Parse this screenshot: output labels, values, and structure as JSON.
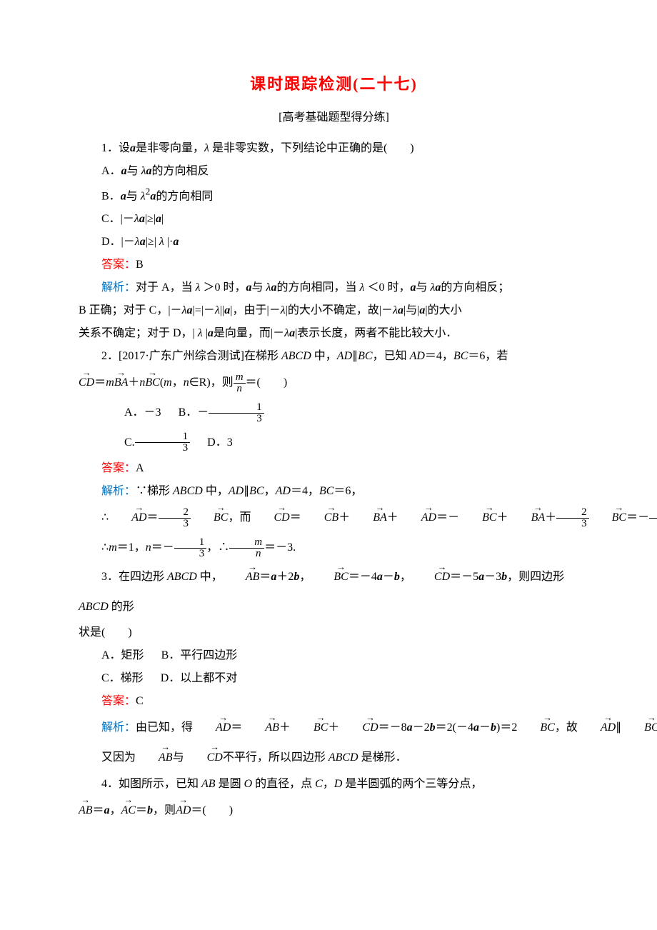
{
  "title": "课时跟踪检测(二十七)",
  "subtitle": "[高考基础题型得分练]",
  "q1": {
    "stem_prefix": "1．设",
    "stem_mid1": "是非零向量，",
    "stem_mid2": " 是非零实数，下列结论中正确的是(　　)",
    "optA_pre": "A．",
    "optA_mid": "与 ",
    "optA_post": "的方向相反",
    "optB_pre": "B．",
    "optB_mid": "与 ",
    "optB_post": "的方向相同",
    "optC": "C．|－",
    "optC_mid": "|≥|",
    "optC_post": "|",
    "optD": "D．|－",
    "optD_mid": "|≥| ",
    "optD_post": " |·",
    "answer_label": "答案：",
    "answer": "B",
    "analysis_label": "解析：",
    "analysis1_a": "对于 A，当 ",
    "analysis1_b": " ＞0 时，",
    "analysis1_c": "与 ",
    "analysis1_d": "的方向相同，当 ",
    "analysis1_e": " ＜0 时，",
    "analysis1_f": "与 ",
    "analysis1_g": "的方向相反；",
    "analysis2_a": "B 正确；对于 C，|－",
    "analysis2_b": "|=|－",
    "analysis2_c": "||",
    "analysis2_d": "|，由于|－",
    "analysis2_e": "|的大小不确定，故|－",
    "analysis2_f": "|与|",
    "analysis2_g": "|的大小",
    "analysis3_a": "关系不确定；对于 D，| ",
    "analysis3_b": " |",
    "analysis3_c": "是向量，而|－",
    "analysis3_d": "|表示长度，两者不能比较大小．"
  },
  "q2": {
    "stem_a": "2．[2017·广东广州综合测试]在梯形 ",
    "stem_b": " 中，",
    "stem_c": "，已知 ",
    "stem_d": "＝4，",
    "stem_e": "＝6，若",
    "line2_a": "＝",
    "line2_b": "＋",
    "line2_c": "(",
    "line2_d": "，",
    "line2_e": "∈R)，则",
    "line2_f": "＝(　　)",
    "optA": "A．－3",
    "optB_pre": "B．－",
    "optC_pre": "C.",
    "optD": "D．3",
    "answer_label": "答案：",
    "answer": "A",
    "analysis_label": "解析：",
    "ana1_a": "∵梯形 ",
    "ana1_b": " 中，",
    "ana1_c": "，",
    "ana1_d": "＝4，",
    "ana1_e": "＝6，",
    "ana2_a": "∴",
    "ana2_b": "＝",
    "ana2_c": "，而",
    "ana2_d": "＝",
    "ana2_e": "＋",
    "ana2_f": "＋",
    "ana2_g": "＝－",
    "ana2_h": "＋",
    "ana2_i": "＋",
    "ana2_j": "＝－",
    "ana2_k": "＋",
    "ana2_l": "，",
    "ana3_a": "∴",
    "ana3_b": "＝1，",
    "ana3_c": "＝－",
    "ana3_d": "，∴",
    "ana3_e": "＝－3."
  },
  "q3": {
    "stem_a": "3．在四边形 ",
    "stem_b": " 中，",
    "stem_c": "＝",
    "stem_d": "＋2",
    "stem_e": "，",
    "stem_f": "＝－4",
    "stem_g": "－",
    "stem_h": "，",
    "stem_i": "＝－5",
    "stem_j": "－3",
    "stem_k": "，则四边形 ",
    "stem_l": " 的形",
    "stem2": "状是(　　)",
    "optA": "A．矩形",
    "optB": "B．平行四边形",
    "optC": "C．梯形",
    "optD": "D．以上都不对",
    "answer_label": "答案：",
    "answer": "C",
    "analysis_label": "解析：",
    "ana1_a": "由已知，得",
    "ana1_b": "＝",
    "ana1_c": "＋",
    "ana1_d": "＋",
    "ana1_e": "＝－8",
    "ana1_f": "－2",
    "ana1_g": "＝2(－4",
    "ana1_h": "－",
    "ana1_i": ")＝2",
    "ana1_j": "，故",
    "ana1_k": "∥",
    "ana1_l": "．",
    "ana2_a": "又因为",
    "ana2_b": "与",
    "ana2_c": "不平行，所以四边形 ",
    "ana2_d": " 是梯形．"
  },
  "q4": {
    "stem_a": "4．如图所示，已知 ",
    "stem_b": " 是圆 ",
    "stem_c": " 的直径，点 ",
    "stem_d": "，",
    "stem_e": " 是半圆弧的两个三等分点，",
    "line2_a": "＝",
    "line2_b": "，",
    "line2_c": "＝",
    "line2_d": "，则",
    "line2_e": "＝(　　)"
  }
}
